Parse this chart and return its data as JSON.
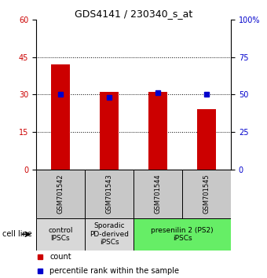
{
  "title": "GDS4141 / 230340_s_at",
  "samples": [
    "GSM701542",
    "GSM701543",
    "GSM701544",
    "GSM701545"
  ],
  "counts": [
    42.0,
    31.0,
    31.0,
    24.0
  ],
  "percentiles": [
    50.0,
    48.0,
    51.0,
    50.0
  ],
  "ylim_left": [
    0,
    60
  ],
  "ylim_right": [
    0,
    100
  ],
  "yticks_left": [
    0,
    15,
    30,
    45,
    60
  ],
  "yticks_right": [
    0,
    25,
    50,
    75,
    100
  ],
  "ytick_labels_right": [
    "0",
    "25",
    "50",
    "75",
    "100%"
  ],
  "bar_color": "#cc0000",
  "dot_color": "#0000cc",
  "bar_width": 0.4,
  "sample_box_color": "#c8c8c8",
  "group_defs": [
    {
      "indices": [
        0
      ],
      "label": "control\nIPSCs",
      "color": "#d8d8d8"
    },
    {
      "indices": [
        1
      ],
      "label": "Sporadic\nPD-derived\niPSCs",
      "color": "#d8d8d8"
    },
    {
      "indices": [
        2,
        3
      ],
      "label": "presenilin 2 (PS2)\niPSCs",
      "color": "#66ee66"
    }
  ],
  "legend_count_color": "#cc0000",
  "legend_pct_color": "#0000cc",
  "title_fontsize": 9,
  "axis_fontsize": 7,
  "sample_fontsize": 6,
  "group_fontsize": 6.5
}
